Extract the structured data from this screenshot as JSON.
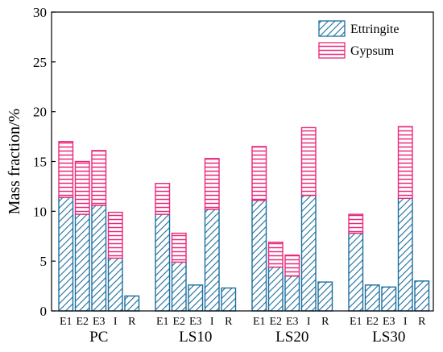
{
  "chart_data": {
    "type": "bar",
    "stacked": true,
    "title": "",
    "xlabel": "",
    "ylabel": "Mass fraction/%",
    "ylim": [
      0,
      30
    ],
    "yticks": [
      0,
      5,
      10,
      15,
      20,
      25,
      30
    ],
    "legend_position": "top-right",
    "groups": [
      {
        "name": "PC",
        "categories": [
          "E1",
          "E2",
          "E3",
          "I",
          "R"
        ]
      },
      {
        "name": "LS10",
        "categories": [
          "E1",
          "E2",
          "E3",
          "I",
          "R"
        ]
      },
      {
        "name": "LS20",
        "categories": [
          "E1",
          "E2",
          "E3",
          "I",
          "R"
        ]
      },
      {
        "name": "LS30",
        "categories": [
          "E1",
          "E2",
          "E3",
          "I",
          "R"
        ]
      }
    ],
    "series": [
      {
        "name": "Ettringite",
        "color": "#1c6e9e",
        "pattern": "diagonal-hatch",
        "values": [
          [
            11.4,
            9.7,
            10.6,
            5.3,
            1.5
          ],
          [
            9.7,
            4.9,
            2.6,
            10.2,
            2.3
          ],
          [
            11.1,
            4.4,
            3.5,
            11.6,
            2.9
          ],
          [
            7.8,
            2.6,
            2.4,
            11.3,
            3.0
          ]
        ]
      },
      {
        "name": "Gypsum",
        "color": "#e8287a",
        "pattern": "horizontal-hatch",
        "values": [
          [
            5.6,
            5.3,
            5.5,
            4.6,
            0
          ],
          [
            3.1,
            2.9,
            0,
            5.1,
            0
          ],
          [
            5.4,
            2.5,
            2.1,
            6.8,
            0
          ],
          [
            1.9,
            0,
            0,
            7.2,
            0
          ]
        ]
      }
    ]
  }
}
